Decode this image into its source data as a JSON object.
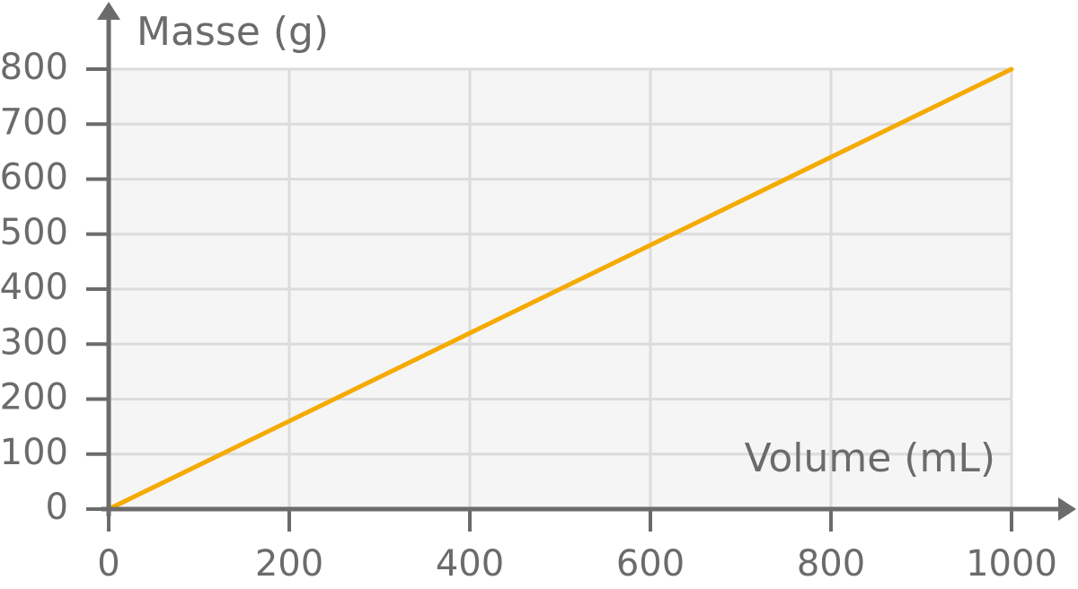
{
  "chart_data": {
    "type": "line",
    "y_label": "Masse (g)",
    "x_label": "Volume (mL)",
    "x": [
      0,
      1000
    ],
    "series": [
      {
        "color": "#f5aa00",
        "values": [
          0,
          800
        ]
      }
    ],
    "xlim": [
      0,
      1000
    ],
    "xticks": [
      0,
      200,
      400,
      600,
      800,
      1000
    ],
    "ylim": [
      0,
      800
    ],
    "yticks": [
      0,
      100,
      200,
      300,
      400,
      500,
      600,
      700,
      800
    ],
    "grid": true
  }
}
